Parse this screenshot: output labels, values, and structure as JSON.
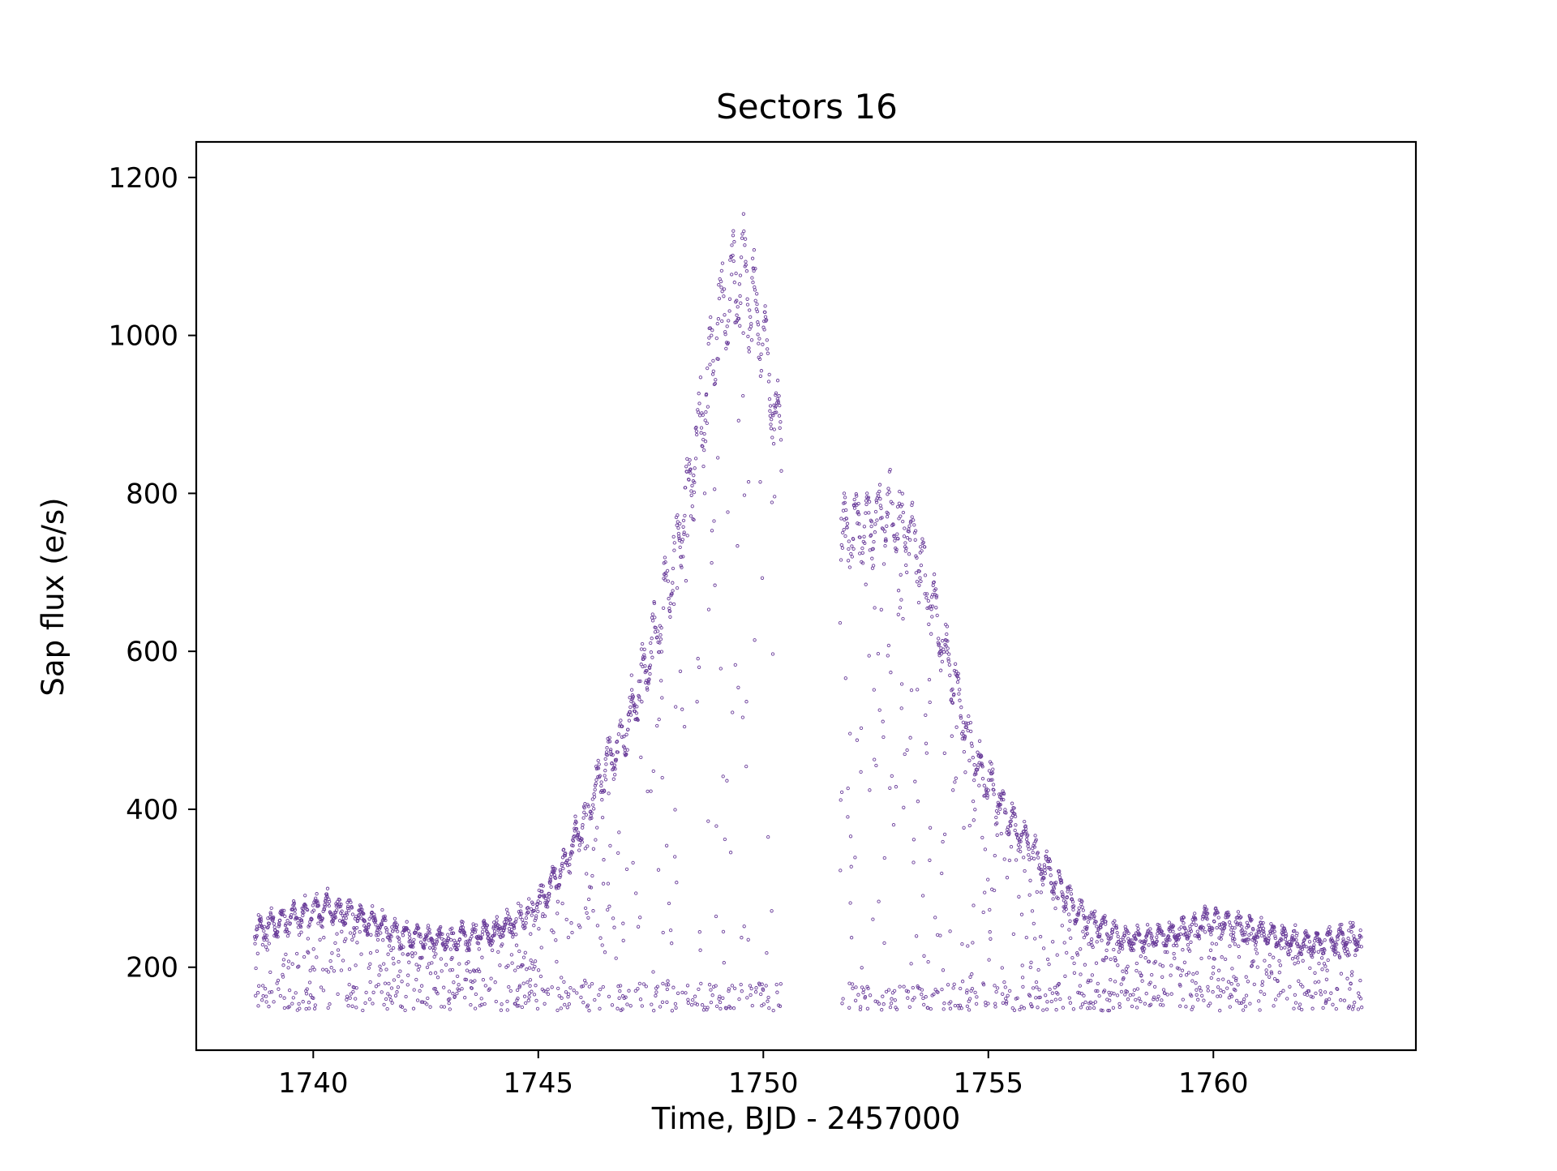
{
  "chart_data": {
    "type": "scatter",
    "title": "Sectors 16",
    "xlabel": "Time, BJD - 2457000",
    "ylabel": "Sap flux (e/s)",
    "xlim": [
      1737.4,
      1764.5
    ],
    "ylim": [
      95,
      1245
    ],
    "xticks": [
      1740,
      1745,
      1750,
      1755,
      1760
    ],
    "yticks": [
      200,
      400,
      600,
      800,
      1000,
      1200
    ],
    "grid": false,
    "marker": "hollow circle",
    "color": "#6a3d9a",
    "observation_gap": [
      1750.4,
      1751.7
    ],
    "series": [
      {
        "baseline_curve": {
          "x": [
            1738.7,
            1739.5,
            1740.3,
            1741.0,
            1742.0,
            1743.0,
            1744.0,
            1744.8,
            1745.5,
            1746.0,
            1746.5,
            1747.0,
            1747.5,
            1748.0,
            1748.5,
            1749.0,
            1749.5,
            1750.0,
            1750.3,
            1751.8,
            1752.3,
            1752.8,
            1753.3,
            1753.8,
            1754.3,
            1754.8,
            1755.5,
            1756.0,
            1756.5,
            1757.0,
            1758.0,
            1759.0,
            1760.0,
            1761.0,
            1762.0,
            1763.3
          ],
          "y": [
            245,
            262,
            275,
            265,
            240,
            235,
            245,
            268,
            320,
            385,
            455,
            505,
            600,
            710,
            850,
            1015,
            1085,
            1000,
            880,
            740,
            760,
            775,
            750,
            650,
            545,
            450,
            385,
            345,
            310,
            270,
            235,
            240,
            260,
            245,
            230,
            240
          ]
        },
        "lower_floor": 160,
        "lower_floor_band": [
          145,
          180
        ]
      }
    ]
  }
}
